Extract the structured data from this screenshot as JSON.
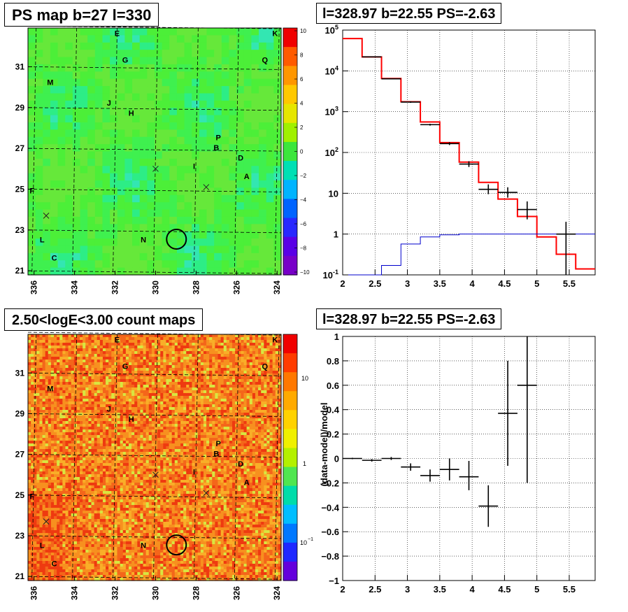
{
  "titles": {
    "ps_map": "PS map b=27 l=330",
    "spectrum": "l=328.97 b=22.55 PS=-2.63",
    "count_maps": "2.50<logE<3.00 count maps",
    "residual": "l=328.97 b=22.55 PS=-2.63"
  },
  "maps": {
    "x_ticks": [
      "336",
      "334",
      "332",
      "330",
      "328",
      "326",
      "324"
    ],
    "y_ticks": [
      "31",
      "29",
      "27",
      "25",
      "23",
      "21"
    ],
    "sources": [
      {
        "label": "E",
        "l": 331.9,
        "b": 32.5
      },
      {
        "label": "K",
        "l": 324.1,
        "b": 32.5
      },
      {
        "label": "G",
        "l": 331.5,
        "b": 31.2
      },
      {
        "label": "Q",
        "l": 324.6,
        "b": 31.2
      },
      {
        "label": "M",
        "l": 335.2,
        "b": 30.1
      },
      {
        "label": "J",
        "l": 332.3,
        "b": 29.1
      },
      {
        "label": "H",
        "l": 331.2,
        "b": 28.6
      },
      {
        "label": "P",
        "l": 326.9,
        "b": 27.4
      },
      {
        "label": "B",
        "l": 327.0,
        "b": 26.9
      },
      {
        "label": "D",
        "l": 325.8,
        "b": 26.4
      },
      {
        "label": "I",
        "l": 328.1,
        "b": 26.0
      },
      {
        "label": "A",
        "l": 325.5,
        "b": 25.5
      },
      {
        "label": "F",
        "l": 336.1,
        "b": 24.8
      },
      {
        "label": "L",
        "l": 335.6,
        "b": 22.4
      },
      {
        "label": "N",
        "l": 330.6,
        "b": 22.4
      },
      {
        "label": "C",
        "l": 335.0,
        "b": 21.5
      }
    ],
    "crosses": [
      {
        "l": 330.0,
        "b": 26.0
      },
      {
        "l": 327.5,
        "b": 25.1
      },
      {
        "l": 335.4,
        "b": 23.7
      }
    ],
    "target": {
      "l": 328.97,
      "b": 22.55
    }
  },
  "ps_colorbar": {
    "labels": [
      "10",
      "8",
      "6",
      "4",
      "2",
      "0",
      "−2",
      "−4",
      "−6",
      "−8",
      "−10"
    ],
    "colors": [
      "#f00000",
      "#ff5a00",
      "#ff9600",
      "#ffc800",
      "#e6e600",
      "#a0f000",
      "#3ce63c",
      "#00e0b4",
      "#00b4ff",
      "#0064ff",
      "#2828ff",
      "#5a00e6",
      "#7800c8"
    ]
  },
  "count_colorbar": {
    "labels": [
      "10",
      "1",
      "10",
      "−1"
    ],
    "colors": [
      "#f00000",
      "#ff3c00",
      "#ff7800",
      "#ffaa00",
      "#ffd200",
      "#f0f000",
      "#b4f000",
      "#50e650",
      "#00dcaa",
      "#00beff",
      "#0078ff",
      "#1e28ff",
      "#6400dc"
    ]
  },
  "chart_data": [
    {
      "type": "line",
      "title": "l=328.97 b=22.55 PS=-2.63",
      "xlim": [
        2.0,
        5.9
      ],
      "ylim": [
        0.1,
        100000
      ],
      "yscale": "log",
      "x_ticks": [
        "2",
        "2.5",
        "3",
        "3.5",
        "4",
        "4.5",
        "5",
        "5.5"
      ],
      "y_ticks": [
        "10^-1",
        "1",
        "10",
        "10^2",
        "10^3",
        "10^4",
        "10^5"
      ],
      "grid": true,
      "bin_edges": [
        2.0,
        2.3,
        2.6,
        2.9,
        3.2,
        3.5,
        3.8,
        4.1,
        4.4,
        4.7,
        5.0,
        5.3,
        5.6,
        5.9
      ],
      "series": [
        {
          "color": "#ff0000",
          "style": "histogram",
          "values": [
            62000,
            22000,
            6500,
            1750,
            560,
            175,
            58,
            18.5,
            7.2,
            2.7,
            0.85,
            0.32,
            0.14
          ]
        },
        {
          "color": "#0000cc",
          "style": "histogram",
          "values": [
            0.1,
            0.1,
            0.17,
            0.57,
            0.85,
            0.96,
            1.0,
            1.0,
            1.0,
            1.0,
            1.0,
            1.0,
            1.0
          ]
        },
        {
          "color": "#000000",
          "style": "errorbar",
          "points": [
            {
              "x": 2.45,
              "y": 22000,
              "lo": 21500,
              "hi": 22500
            },
            {
              "x": 2.75,
              "y": 6400,
              "lo": 6250,
              "hi": 6550
            },
            {
              "x": 3.05,
              "y": 1720,
              "lo": 1650,
              "hi": 1790
            },
            {
              "x": 3.35,
              "y": 480,
              "lo": 455,
              "hi": 505
            },
            {
              "x": 3.65,
              "y": 165,
              "lo": 152,
              "hi": 178
            },
            {
              "x": 3.95,
              "y": 52,
              "lo": 44,
              "hi": 61
            },
            {
              "x": 4.25,
              "y": 12.5,
              "lo": 9.5,
              "hi": 16.5
            },
            {
              "x": 4.55,
              "y": 10.5,
              "lo": 7.8,
              "hi": 14
            },
            {
              "x": 4.85,
              "y": 4.0,
              "lo": 2.3,
              "hi": 6.3
            },
            {
              "x": 5.45,
              "y": 1.0,
              "lo": 0.1,
              "hi": 2.0
            }
          ]
        }
      ]
    },
    {
      "type": "scatter",
      "title": "l=328.97 b=22.55 PS=-2.63",
      "ylabel": "(data-model)/model",
      "xlim": [
        2.0,
        5.9
      ],
      "ylim": [
        -1.0,
        1.0
      ],
      "x_ticks": [
        "2",
        "2.5",
        "3",
        "3.5",
        "4",
        "4.5",
        "5",
        "5.5"
      ],
      "y_ticks": [
        "1",
        "0.8",
        "0.6",
        "0.4",
        "0.2",
        "0",
        "−0.2",
        "−0.4",
        "−0.6",
        "−0.8",
        "−1"
      ],
      "grid": true,
      "series": [
        {
          "color": "#000000",
          "style": "errorbar",
          "points": [
            {
              "x": 2.15,
              "y": 0.0,
              "lo": -0.006,
              "hi": 0.006
            },
            {
              "x": 2.45,
              "y": -0.015,
              "lo": -0.025,
              "hi": -0.005
            },
            {
              "x": 2.75,
              "y": 0.0,
              "lo": -0.012,
              "hi": 0.012
            },
            {
              "x": 3.05,
              "y": -0.07,
              "lo": -0.1,
              "hi": -0.04
            },
            {
              "x": 3.35,
              "y": -0.14,
              "lo": -0.19,
              "hi": -0.09
            },
            {
              "x": 3.65,
              "y": -0.09,
              "lo": -0.18,
              "hi": 0.0
            },
            {
              "x": 3.95,
              "y": -0.15,
              "lo": -0.26,
              "hi": -0.02
            },
            {
              "x": 4.25,
              "y": -0.39,
              "lo": -0.56,
              "hi": -0.22
            },
            {
              "x": 4.55,
              "y": 0.37,
              "lo": -0.06,
              "hi": 0.8
            },
            {
              "x": 4.85,
              "y": 0.6,
              "lo": -0.2,
              "hi": 1.0
            }
          ]
        }
      ]
    }
  ]
}
